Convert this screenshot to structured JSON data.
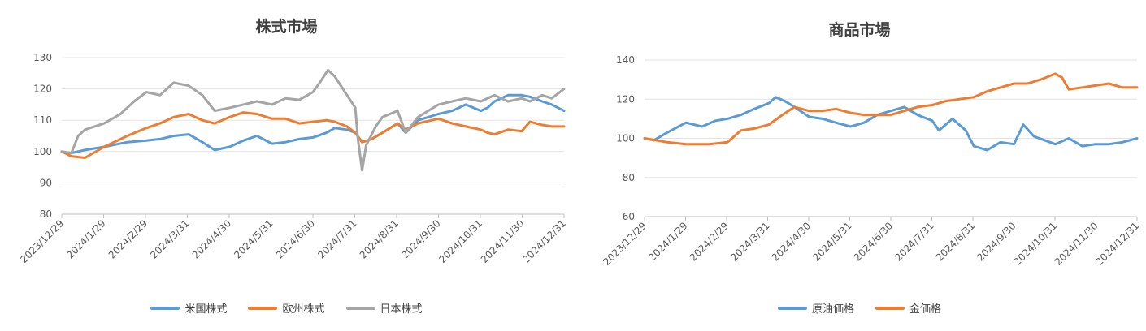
{
  "chart_data": [
    {
      "type": "line",
      "title": "株式市場",
      "x_tick_labels": [
        "2023/12/29",
        "2024/1/29",
        "2024/2/29",
        "2024/3/31",
        "2024/4/30",
        "2024/5/31",
        "2024/6/30",
        "2024/7/31",
        "2024/8/31",
        "2024/9/30",
        "2024/10/31",
        "2024/11/30",
        "2024/12/31"
      ],
      "ylim": [
        80,
        130
      ],
      "y_ticks": [
        80,
        90,
        100,
        110,
        120,
        130
      ],
      "grid": true,
      "legend": "bottom",
      "series": [
        {
          "name": "米国株式",
          "color": "#5b9bd5",
          "x": [
            "2023-12-29",
            "2024-01-05",
            "2024-01-15",
            "2024-01-29",
            "2024-02-15",
            "2024-02-29",
            "2024-03-10",
            "2024-03-20",
            "2024-03-31",
            "2024-04-10",
            "2024-04-19",
            "2024-04-30",
            "2024-05-10",
            "2024-05-20",
            "2024-05-31",
            "2024-06-10",
            "2024-06-20",
            "2024-06-30",
            "2024-07-10",
            "2024-07-16",
            "2024-07-25",
            "2024-07-31",
            "2024-08-05",
            "2024-08-12",
            "2024-08-20",
            "2024-08-31",
            "2024-09-06",
            "2024-09-15",
            "2024-09-30",
            "2024-10-10",
            "2024-10-20",
            "2024-10-31",
            "2024-11-05",
            "2024-11-10",
            "2024-11-20",
            "2024-11-30",
            "2024-12-06",
            "2024-12-15",
            "2024-12-22",
            "2024-12-31"
          ],
          "y": [
            100,
            99.5,
            100.5,
            101.5,
            103,
            103.5,
            104,
            105,
            105.5,
            103,
            100.5,
            101.5,
            103.5,
            105,
            102.5,
            103,
            104,
            104.5,
            106,
            107.5,
            107,
            106,
            103,
            104,
            106,
            109,
            106,
            110,
            112,
            113,
            115,
            113,
            114,
            116,
            118,
            118,
            117.5,
            116,
            115,
            113
          ]
        },
        {
          "name": "欧州株式",
          "color": "#ed7d31",
          "x": [
            "2023-12-29",
            "2024-01-05",
            "2024-01-15",
            "2024-01-29",
            "2024-02-15",
            "2024-02-29",
            "2024-03-10",
            "2024-03-20",
            "2024-03-31",
            "2024-04-10",
            "2024-04-19",
            "2024-04-30",
            "2024-05-10",
            "2024-05-20",
            "2024-05-31",
            "2024-06-10",
            "2024-06-20",
            "2024-06-30",
            "2024-07-10",
            "2024-07-16",
            "2024-07-25",
            "2024-07-31",
            "2024-08-05",
            "2024-08-12",
            "2024-08-20",
            "2024-08-31",
            "2024-09-06",
            "2024-09-15",
            "2024-09-30",
            "2024-10-10",
            "2024-10-20",
            "2024-10-31",
            "2024-11-05",
            "2024-11-10",
            "2024-11-20",
            "2024-11-30",
            "2024-12-06",
            "2024-12-15",
            "2024-12-22",
            "2024-12-31"
          ],
          "y": [
            100,
            98.5,
            98,
            101.5,
            105,
            107.5,
            109,
            111,
            112,
            110,
            109,
            111,
            112.5,
            112,
            110.5,
            110.5,
            109,
            109.5,
            110,
            109.5,
            108,
            106,
            103,
            104,
            106,
            109,
            107,
            109,
            110.5,
            109,
            108,
            107,
            106,
            105.5,
            107,
            106.5,
            109.5,
            108.5,
            108,
            108
          ]
        },
        {
          "name": "日本株式",
          "color": "#a5a5a5",
          "x": [
            "2023-12-29",
            "2024-01-05",
            "2024-01-10",
            "2024-01-15",
            "2024-01-29",
            "2024-02-10",
            "2024-02-20",
            "2024-02-29",
            "2024-03-10",
            "2024-03-20",
            "2024-03-31",
            "2024-04-10",
            "2024-04-19",
            "2024-04-30",
            "2024-05-10",
            "2024-05-20",
            "2024-05-31",
            "2024-06-10",
            "2024-06-20",
            "2024-06-30",
            "2024-07-05",
            "2024-07-11",
            "2024-07-16",
            "2024-07-25",
            "2024-07-31",
            "2024-08-02",
            "2024-08-05",
            "2024-08-08",
            "2024-08-15",
            "2024-08-20",
            "2024-08-31",
            "2024-09-06",
            "2024-09-15",
            "2024-09-30",
            "2024-10-10",
            "2024-10-20",
            "2024-10-31",
            "2024-11-10",
            "2024-11-20",
            "2024-11-30",
            "2024-12-06",
            "2024-12-15",
            "2024-12-22",
            "2024-12-31"
          ],
          "y": [
            100,
            99.5,
            105,
            107,
            109,
            112,
            116,
            119,
            118,
            122,
            121,
            118,
            113,
            114,
            115,
            116,
            115,
            117,
            116.5,
            119,
            122,
            126,
            124,
            118,
            114,
            104,
            94,
            102,
            108,
            111,
            113,
            106,
            111,
            115,
            116,
            117,
            116,
            118,
            116,
            117,
            116,
            118,
            117,
            120
          ]
        }
      ]
    },
    {
      "type": "line",
      "title": "商品市場",
      "x_tick_labels": [
        "2023/12/29",
        "2024/1/29",
        "2024/2/29",
        "2024/3/31",
        "2024/4/30",
        "2024/5/31",
        "2024/6/30",
        "2024/7/31",
        "2024/8/31",
        "2024/9/30",
        "2024/10/31",
        "2024/11/30",
        "2024/12/31"
      ],
      "ylim": [
        60,
        140
      ],
      "y_ticks": [
        60,
        80,
        100,
        120,
        140
      ],
      "grid": true,
      "legend": "bottom",
      "series": [
        {
          "name": "原油価格",
          "color": "#5b9bd5",
          "x": [
            "2023-12-29",
            "2024-01-05",
            "2024-01-15",
            "2024-01-29",
            "2024-02-10",
            "2024-02-20",
            "2024-02-29",
            "2024-03-10",
            "2024-03-20",
            "2024-03-31",
            "2024-04-05",
            "2024-04-12",
            "2024-04-19",
            "2024-04-30",
            "2024-05-10",
            "2024-05-20",
            "2024-05-31",
            "2024-06-10",
            "2024-06-20",
            "2024-06-30",
            "2024-07-10",
            "2024-07-20",
            "2024-07-31",
            "2024-08-05",
            "2024-08-15",
            "2024-08-25",
            "2024-08-31",
            "2024-09-10",
            "2024-09-20",
            "2024-09-30",
            "2024-10-07",
            "2024-10-15",
            "2024-10-31",
            "2024-11-10",
            "2024-11-20",
            "2024-11-30",
            "2024-12-10",
            "2024-12-20",
            "2024-12-31"
          ],
          "y": [
            100,
            99,
            103,
            108,
            106,
            109,
            110,
            112,
            115,
            118,
            121,
            119,
            116,
            111,
            110,
            108,
            106,
            108,
            112,
            114,
            116,
            112,
            109,
            104,
            110,
            104,
            96,
            94,
            98,
            97,
            107,
            101,
            97,
            100,
            96,
            97,
            97,
            98,
            100
          ]
        },
        {
          "name": "金価格",
          "color": "#ed7d31",
          "x": [
            "2023-12-29",
            "2024-01-15",
            "2024-01-29",
            "2024-02-15",
            "2024-02-29",
            "2024-03-10",
            "2024-03-20",
            "2024-03-31",
            "2024-04-10",
            "2024-04-19",
            "2024-04-30",
            "2024-05-10",
            "2024-05-20",
            "2024-05-31",
            "2024-06-10",
            "2024-06-20",
            "2024-06-30",
            "2024-07-10",
            "2024-07-20",
            "2024-07-31",
            "2024-08-10",
            "2024-08-20",
            "2024-08-31",
            "2024-09-10",
            "2024-09-20",
            "2024-09-30",
            "2024-10-10",
            "2024-10-20",
            "2024-10-31",
            "2024-11-05",
            "2024-11-10",
            "2024-11-20",
            "2024-11-30",
            "2024-12-10",
            "2024-12-20",
            "2024-12-31"
          ],
          "y": [
            100,
            98,
            97,
            97,
            98,
            104,
            105,
            107,
            112,
            116,
            114,
            114,
            115,
            113,
            112,
            112,
            112,
            114,
            116,
            117,
            119,
            120,
            121,
            124,
            126,
            128,
            128,
            130,
            133,
            131,
            125,
            126,
            127,
            128,
            126,
            126
          ]
        }
      ]
    }
  ]
}
